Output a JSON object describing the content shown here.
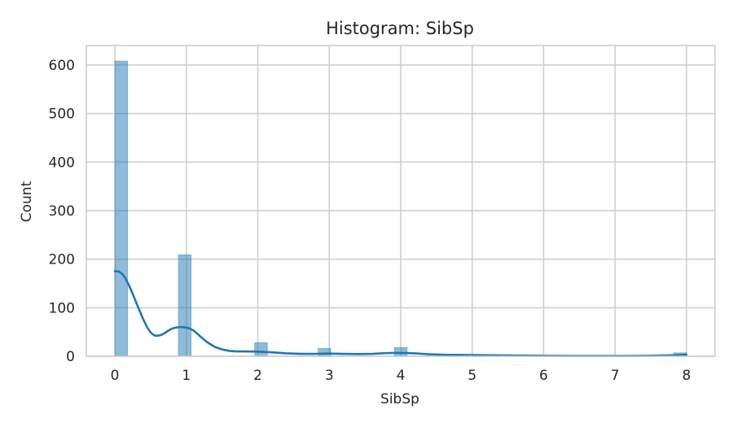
{
  "chart_data": {
    "type": "bar",
    "title": "Histogram: SibSp",
    "xlabel": "SibSp",
    "ylabel": "Count",
    "xlim": [
      -0.4,
      8.4
    ],
    "ylim": [
      0,
      640
    ],
    "xticks": [
      0,
      1,
      2,
      3,
      4,
      5,
      6,
      7,
      8
    ],
    "yticks": [
      0,
      100,
      200,
      300,
      400,
      500,
      600
    ],
    "grid": true,
    "bins": [
      {
        "x0": 0.0,
        "x1": 0.1778,
        "count": 608
      },
      {
        "x0": 0.8889,
        "x1": 1.0667,
        "count": 209
      },
      {
        "x0": 1.9556,
        "x1": 2.1333,
        "count": 28
      },
      {
        "x0": 2.8444,
        "x1": 3.0222,
        "count": 16
      },
      {
        "x0": 3.9111,
        "x1": 4.0889,
        "count": 18
      },
      {
        "x0": 7.8222,
        "x1": 8.0,
        "count": 7
      }
    ],
    "kde": {
      "x": [
        0,
        0.05,
        0.1,
        0.15,
        0.2,
        0.25,
        0.3,
        0.35,
        0.4,
        0.45,
        0.5,
        0.55,
        0.6,
        0.65,
        0.7,
        0.75,
        0.8,
        0.85,
        0.9,
        0.95,
        1.0,
        1.05,
        1.1,
        1.15,
        1.2,
        1.3,
        1.4,
        1.5,
        1.6,
        1.7,
        1.8,
        2.0,
        2.2,
        2.4,
        2.6,
        2.8,
        3.0,
        3.2,
        3.4,
        3.6,
        3.8,
        4.0,
        4.2,
        4.4,
        4.6,
        5.0,
        5.5,
        6.0,
        6.5,
        7.0,
        7.5,
        7.8,
        8.0
      ],
      "y": [
        175,
        175,
        170,
        160,
        145,
        128,
        110,
        92,
        75,
        60,
        49,
        43,
        42,
        44,
        48,
        53,
        57,
        59,
        60,
        60,
        59,
        57,
        53,
        47,
        40,
        28,
        19,
        14,
        11,
        10,
        10,
        9.5,
        8,
        6,
        5,
        5,
        5.5,
        5,
        4.5,
        5,
        6.5,
        7,
        6,
        4,
        3,
        2.5,
        1.5,
        1,
        0.5,
        0.5,
        1,
        2,
        3
      ]
    },
    "colors": {
      "bar_fill": "#1f77b4",
      "kde_line": "#1f77b4",
      "grid": "#cccccc",
      "axes_edge": "#cccccc",
      "text": "#262626"
    }
  }
}
